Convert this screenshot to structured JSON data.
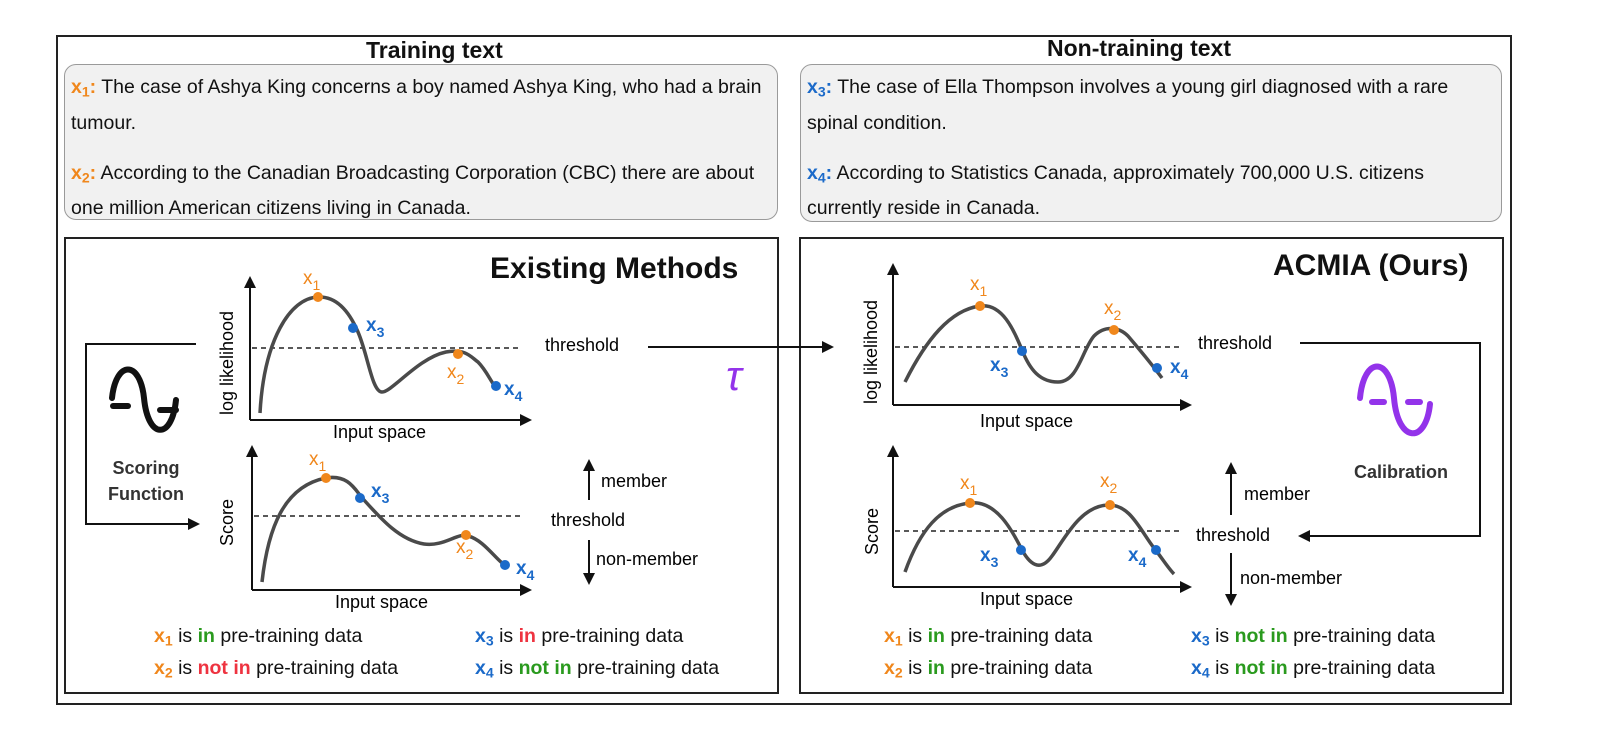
{
  "headings": {
    "training": "Training text",
    "non_training": "Non-training text"
  },
  "training_texts": [
    {
      "label": "x",
      "sub": "1",
      "text": "The case of Ashya King concerns a boy named Ashya King, who had a brain tumour."
    },
    {
      "label": "x",
      "sub": "2",
      "text": "According to the Canadian Broadcasting Corporation (CBC) there are about one million American citizens living in Canada."
    }
  ],
  "non_training_texts": [
    {
      "label": "x",
      "sub": "3",
      "text": "The case of Ella Thompson involves a young girl diagnosed with a rare spinal condition."
    },
    {
      "label": "x",
      "sub": "4",
      "text": "According to Statistics Canada, approximately 700,000 U.S. citizens currently reside in Canada."
    }
  ],
  "left_panel": {
    "title": "Existing Methods",
    "top_ylabel": "log likelihood",
    "xlabel": "Input space",
    "bottom_ylabel": "Score",
    "threshold": "threshold",
    "member": "member",
    "non_member": "non-member",
    "side_label": "Scoring Function",
    "legend": [
      {
        "sub": "1",
        "verdict": "in",
        "rest": "pre-training data"
      },
      {
        "sub": "3",
        "verdict": "in",
        "rest": "pre-training data"
      },
      {
        "sub": "2",
        "verdict": "not in",
        "rest": "pre-training data"
      },
      {
        "sub": "4",
        "verdict": "not in",
        "rest": "pre-training data"
      }
    ]
  },
  "right_panel": {
    "title": "ACMIA (Ours)",
    "top_ylabel": "log likelihood",
    "xlabel": "Input space",
    "bottom_ylabel": "Score",
    "threshold": "threshold",
    "member": "member",
    "non_member": "non-member",
    "side_label": "Calibration",
    "legend": [
      {
        "sub": "1",
        "verdict": "in",
        "rest": "pre-training data"
      },
      {
        "sub": "3",
        "verdict": "not in",
        "rest": "pre-training data"
      },
      {
        "sub": "2",
        "verdict": "in",
        "rest": "pre-training data"
      },
      {
        "sub": "4",
        "verdict": "not in",
        "rest": "pre-training data"
      }
    ]
  },
  "tau_symbol": "τ",
  "legend_is": "is",
  "point_prefix": "x",
  "colors": {
    "orange": "#f0871c",
    "blue": "#1b6ac9",
    "green": "#2a9a1e",
    "red": "#ee3340",
    "purple": "#9333ea",
    "curve": "#4a4a4a"
  },
  "icons": {
    "scoring": "wave-icon",
    "calibration": "wave-icon-purple"
  }
}
